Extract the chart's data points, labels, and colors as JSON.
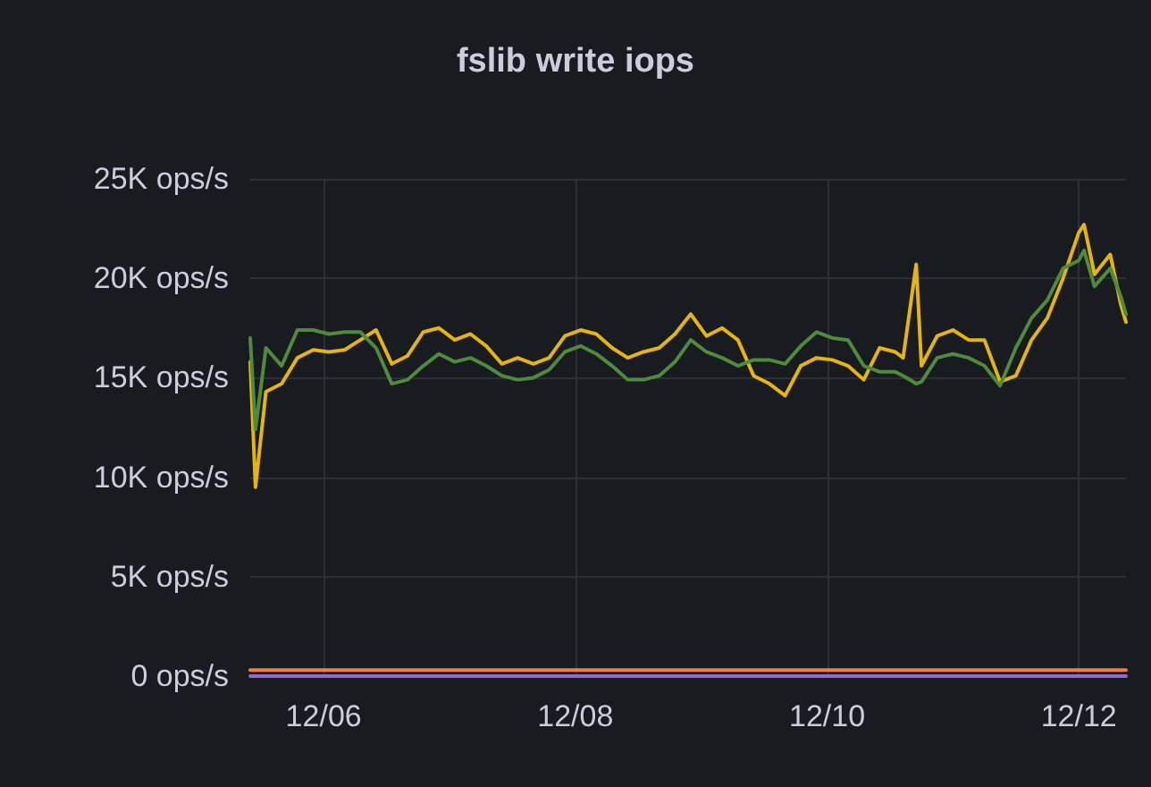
{
  "chart_data": {
    "type": "line",
    "title": "fslib write iops",
    "x": [
      "--12-05T10:00",
      "--12-05T11:00",
      "--12-05T13:00",
      "--12-05T16:00",
      "--12-05T19:00",
      "--12-05T22:00",
      "--12-06T01:00",
      "--12-06T04:00",
      "--12-06T07:00",
      "--12-06T10:00",
      "--12-06T13:00",
      "--12-06T16:00",
      "--12-06T19:00",
      "--12-06T22:00",
      "--12-07T01:00",
      "--12-07T04:00",
      "--12-07T07:00",
      "--12-07T10:00",
      "--12-07T13:00",
      "--12-07T16:00",
      "--12-07T19:00",
      "--12-07T22:00",
      "--12-08T01:00",
      "--12-08T04:00",
      "--12-08T07:00",
      "--12-08T10:00",
      "--12-08T13:00",
      "--12-08T16:00",
      "--12-08T19:00",
      "--12-08T22:00",
      "--12-09T01:00",
      "--12-09T04:00",
      "--12-09T07:00",
      "--12-09T10:00",
      "--12-09T13:00",
      "--12-09T16:00",
      "--12-09T19:00",
      "--12-09T22:00",
      "--12-10T01:00",
      "--12-10T04:00",
      "--12-10T07:00",
      "--12-10T10:00",
      "--12-10T13:00",
      "--12-10T14:30",
      "--12-10T17:00",
      "--12-10T18:00",
      "--12-10T21:00",
      "--12-11T00:00",
      "--12-11T03:00",
      "--12-11T06:00",
      "--12-11T09:00",
      "--12-11T12:00",
      "--12-11T15:00",
      "--12-11T18:00",
      "--12-11T21:00",
      "--12-12T00:00",
      "--12-12T01:00",
      "--12-12T03:00",
      "--12-12T06:00",
      "--12-12T08:00",
      "--12-12T09:00"
    ],
    "series": [
      {
        "color": "#e5b50c",
        "values": [
          15800,
          9500,
          14300,
          14700,
          16000,
          16400,
          16300,
          16400,
          16900,
          17400,
          15700,
          16100,
          17300,
          17500,
          16900,
          17200,
          16600,
          15700,
          16000,
          15700,
          16000,
          17100,
          17400,
          17200,
          16500,
          16000,
          16300,
          16500,
          17200,
          18200,
          17100,
          17500,
          16900,
          15100,
          14700,
          14100,
          15600,
          16000,
          15900,
          15600,
          14900,
          16500,
          16300,
          16000,
          20700,
          15600,
          17100,
          17400,
          16900,
          16900,
          14800,
          15100,
          16900,
          18000,
          20000,
          22300,
          22700,
          20200,
          21200,
          18700,
          17800
        ]
      },
      {
        "color": "#508a3c",
        "values": [
          17000,
          12400,
          16500,
          15600,
          17400,
          17400,
          17200,
          17300,
          17300,
          16500,
          14700,
          14900,
          15600,
          16200,
          15800,
          16000,
          15600,
          15100,
          14900,
          15000,
          15400,
          16300,
          16600,
          16200,
          15600,
          14900,
          14900,
          15100,
          15800,
          16900,
          16300,
          16000,
          15600,
          15900,
          15900,
          15700,
          16600,
          17300,
          17000,
          16900,
          15600,
          15300,
          15300,
          15100,
          14700,
          14800,
          16000,
          16200,
          16000,
          15600,
          14600,
          16500,
          18000,
          18900,
          20500,
          20900,
          21400,
          19600,
          20500,
          19100,
          18200
        ]
      },
      {
        "color": "#f2803a",
        "x": [
          "--12-05T10:00",
          "--12-12T09:00"
        ],
        "values": [
          300,
          300
        ]
      },
      {
        "color": "#8f6bd0",
        "x": [
          "--12-05T10:00",
          "--12-12T09:00"
        ],
        "values": [
          0,
          0
        ]
      }
    ],
    "xlim": [
      "--12-05T10:00",
      "--12-12T09:00"
    ],
    "xticks": [
      {
        "value": "--12-06",
        "label": "12/06"
      },
      {
        "value": "--12-08",
        "label": "12/08"
      },
      {
        "value": "--12-10",
        "label": "12/10"
      },
      {
        "value": "--12-12",
        "label": "12/12"
      }
    ],
    "ylim": [
      0,
      25000
    ],
    "yticks": [
      {
        "value": 0,
        "label": "0 ops/s"
      },
      {
        "value": 5000,
        "label": "5K ops/s"
      },
      {
        "value": 10000,
        "label": "10K ops/s"
      },
      {
        "value": 15000,
        "label": "15K ops/s"
      },
      {
        "value": 20000,
        "label": "20K ops/s"
      },
      {
        "value": 25000,
        "label": "25K ops/s"
      }
    ],
    "grid": true,
    "marker": "none",
    "line_style": "solid"
  }
}
